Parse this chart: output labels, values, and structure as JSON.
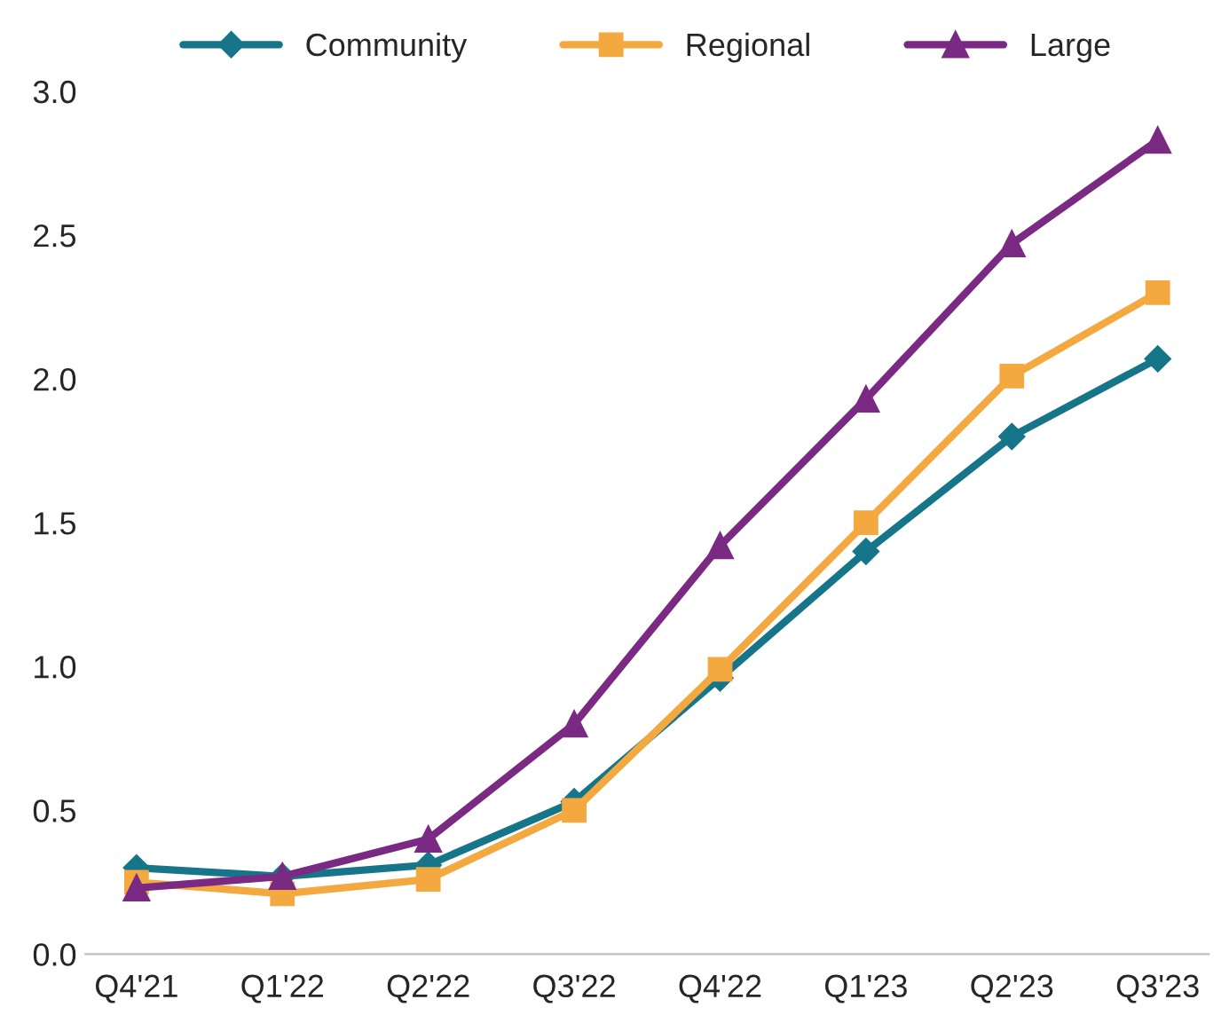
{
  "chart_data": {
    "type": "line",
    "categories": [
      "Q4'21",
      "Q1'22",
      "Q2'22",
      "Q3'22",
      "Q4'22",
      "Q1'23",
      "Q2'23",
      "Q3'23"
    ],
    "series": [
      {
        "name": "Community",
        "color": "#17758a",
        "marker": "diamond",
        "values": [
          0.3,
          0.27,
          0.31,
          0.53,
          0.96,
          1.4,
          1.8,
          2.07
        ]
      },
      {
        "name": "Regional",
        "color": "#f4a940",
        "marker": "square",
        "values": [
          0.25,
          0.21,
          0.26,
          0.5,
          0.99,
          1.5,
          2.01,
          2.3
        ]
      },
      {
        "name": "Large",
        "color": "#7a2a82",
        "marker": "triangle",
        "values": [
          0.23,
          0.27,
          0.4,
          0.8,
          1.42,
          1.93,
          2.47,
          2.83
        ]
      }
    ],
    "ylim": [
      0,
      3.0
    ],
    "yticks": [
      {
        "value": 0,
        "label": "0.0"
      },
      {
        "value": 0.5,
        "label": "0.5"
      },
      {
        "value": 1,
        "label": "1.0"
      },
      {
        "value": 1.5,
        "label": "1.5"
      },
      {
        "value": 2,
        "label": "2.0"
      },
      {
        "value": 2.5,
        "label": "2.5"
      },
      {
        "value": 3,
        "label": "3.0"
      }
    ],
    "grid": false,
    "legend": "top",
    "line_style": "solid"
  }
}
